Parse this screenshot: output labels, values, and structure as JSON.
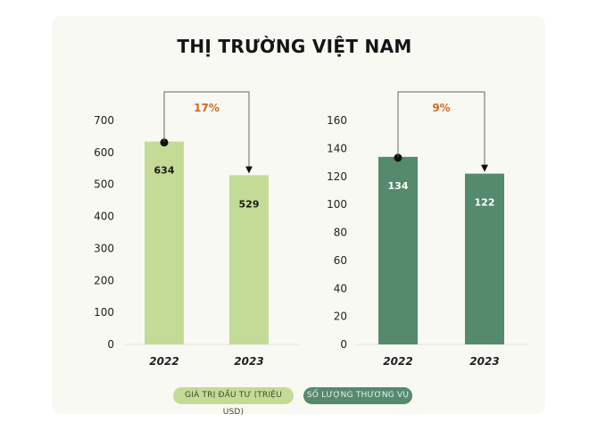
{
  "title": "THỊ TRƯỜNG VIỆT NAM",
  "chart_data": [
    {
      "type": "bar",
      "categories": [
        "2022",
        "2023"
      ],
      "values": [
        634,
        529
      ],
      "series_name": "GIÁ TRỊ ĐẦU TƯ (TRIỆU USD)",
      "ylim": [
        0,
        700
      ],
      "yticks": [
        0,
        100,
        200,
        300,
        400,
        500,
        600,
        700
      ],
      "change_label": "17%",
      "bar_color": "#c4db97",
      "label_color": "#1a1a1a"
    },
    {
      "type": "bar",
      "categories": [
        "2022",
        "2023"
      ],
      "values": [
        134,
        122
      ],
      "series_name": "SỐ LƯỢNG THƯƠNG VỤ",
      "ylim": [
        0,
        160
      ],
      "yticks": [
        0,
        20,
        40,
        60,
        80,
        100,
        120,
        140,
        160
      ],
      "change_label": "9%",
      "bar_color": "#558a6c",
      "label_color": "#ffffff"
    }
  ],
  "legend": {
    "investment_value": "GIÁ TRỊ ĐẦU TƯ (TRIỆU USD)",
    "deal_count": "SỐ LƯỢNG THƯƠNG VỤ"
  },
  "colors": {
    "accent_orange": "#d2691e",
    "background": "#f8f9f3"
  }
}
